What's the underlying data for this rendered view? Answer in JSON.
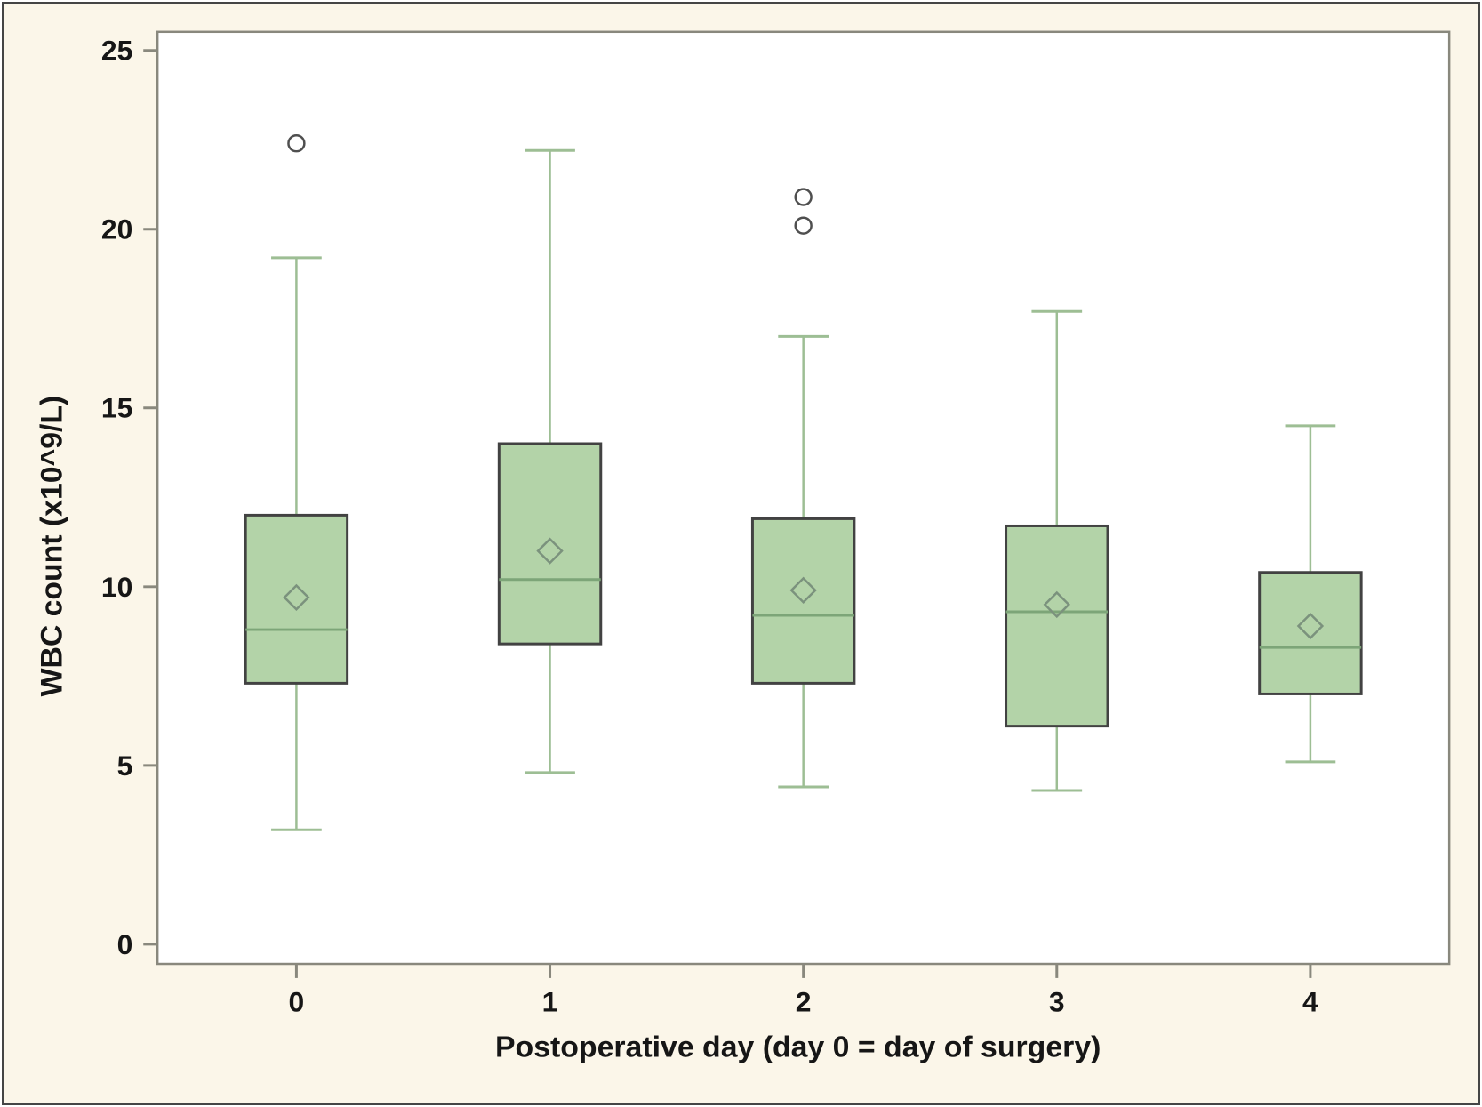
{
  "chart_data": {
    "type": "boxplot",
    "title": "",
    "xlabel": "Postoperative day (day 0 = day of surgery)",
    "ylabel": "WBC count (x10^9/L)",
    "categories": [
      "0",
      "1",
      "2",
      "3",
      "4"
    ],
    "y_ticks": [
      0,
      5,
      10,
      15,
      20,
      25
    ],
    "ylim": [
      -0.55,
      25.52
    ],
    "grid": "off",
    "legend": "none",
    "series": [
      {
        "day": "0",
        "whisker_low": 3.2,
        "q1": 7.3,
        "median": 8.8,
        "q3": 12.0,
        "whisker_high": 19.2,
        "mean": 9.7,
        "outliers": [
          22.4
        ]
      },
      {
        "day": "1",
        "whisker_low": 4.8,
        "q1": 8.4,
        "median": 10.2,
        "q3": 14.0,
        "whisker_high": 22.2,
        "mean": 11.0,
        "outliers": []
      },
      {
        "day": "2",
        "whisker_low": 4.4,
        "q1": 7.3,
        "median": 9.2,
        "q3": 11.9,
        "whisker_high": 17.0,
        "mean": 9.9,
        "outliers": [
          20.1,
          20.9
        ]
      },
      {
        "day": "3",
        "whisker_low": 4.3,
        "q1": 6.1,
        "median": 9.3,
        "q3": 11.7,
        "whisker_high": 17.7,
        "mean": 9.5,
        "outliers": []
      },
      {
        "day": "4",
        "whisker_low": 5.1,
        "q1": 7.0,
        "median": 8.3,
        "q3": 10.4,
        "whisker_high": 14.5,
        "mean": 8.9,
        "outliers": []
      }
    ],
    "colors": {
      "background": "#fbf6e9",
      "plot_background": "#ffffff",
      "frame": "#89887d",
      "box_fill": "#b3d3a8",
      "box_border": "#424242",
      "median_line": "#7da578",
      "mean_marker": "#7b927d",
      "whisker": "#9dbe94",
      "outlier": "#4f4f4f",
      "text": "#161616"
    }
  }
}
